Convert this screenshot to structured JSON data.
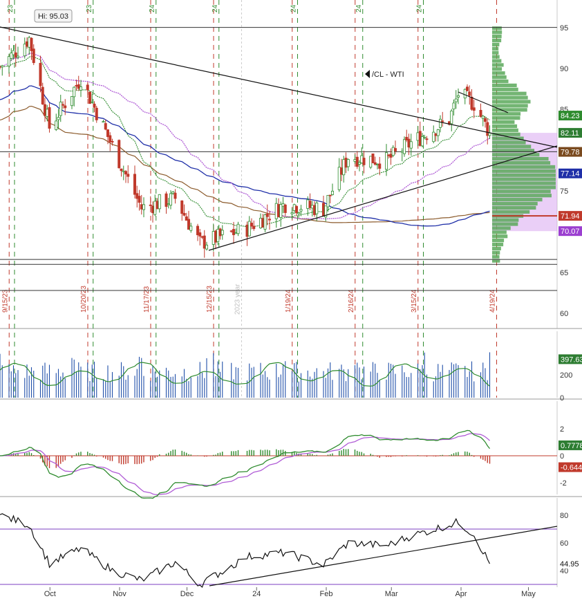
{
  "symbol_label": "/CL - WTI",
  "high_callout": "Hi: 95.03",
  "colors": {
    "up": "#2e8b2e",
    "down": "#c0392b",
    "sma_blue": "#1f2fa8",
    "sma_brown": "#8b5a2b",
    "sma_purple": "#b05cd6",
    "ema_green": "#2e8b2e",
    "volume_profile_green": "#5aa85a",
    "value_area_purple": "#d9a8f0",
    "trendline": "#111111",
    "expiry_red": "#c0392b",
    "roll_green": "#2e8b2e"
  },
  "chart_data": [
    {
      "panel": "price",
      "type": "candlestick",
      "x_axis_months": [
        "Oct",
        "Nov",
        "Dec",
        "24",
        "Feb",
        "Mar",
        "Apr",
        "May"
      ],
      "y_ticks": [
        60,
        65,
        70,
        75,
        80,
        85,
        90,
        95
      ],
      "ylim": [
        58,
        97
      ],
      "close_approx": [
        {
          "date": "2023-09-14",
          "close": 90.2
        },
        {
          "date": "2023-09-27",
          "close": 93.7
        },
        {
          "date": "2023-10-06",
          "close": 82.8
        },
        {
          "date": "2023-10-20",
          "close": 88.8
        },
        {
          "date": "2023-11-03",
          "close": 80.5
        },
        {
          "date": "2023-11-16",
          "close": 72.9
        },
        {
          "date": "2023-12-01",
          "close": 74.1
        },
        {
          "date": "2023-12-12",
          "close": 68.6
        },
        {
          "date": "2024-01-02",
          "close": 70.4
        },
        {
          "date": "2024-01-19",
          "close": 73.4
        },
        {
          "date": "2024-02-05",
          "close": 72.8
        },
        {
          "date": "2024-02-16",
          "close": 79.2
        },
        {
          "date": "2024-03-04",
          "close": 78.7
        },
        {
          "date": "2024-03-15",
          "close": 80.9
        },
        {
          "date": "2024-04-01",
          "close": 83.7
        },
        {
          "date": "2024-04-05",
          "close": 86.9
        },
        {
          "date": "2024-04-12",
          "close": 85.7
        },
        {
          "date": "2024-04-19",
          "close": 82.1
        }
      ],
      "moving_averages": [
        {
          "color_key": "ema_green",
          "last": 84.23
        },
        {
          "color_key": "sma_brown",
          "last": 79.78
        },
        {
          "color_key": "sma_blue",
          "last": 77.14
        }
      ],
      "price_labels": [
        {
          "value": "84.23",
          "bg": "#2e8b2e"
        },
        {
          "value": "82.11",
          "bg": "#2e7d32"
        },
        {
          "value": "79.78",
          "bg": "#7a4a1e"
        },
        {
          "value": "77.14",
          "bg": "#1f2fa8"
        },
        {
          "value": "71.94",
          "bg": "#c0392b"
        },
        {
          "value": "70.07",
          "bg": "#9b3fd0"
        }
      ],
      "horizontal_levels": [
        95.03,
        66.6,
        66.0,
        79.8,
        62.8
      ],
      "value_area": [
        70.07,
        82.11
      ],
      "expiry_labels": [
        "9/15/23",
        "10/20/23",
        "11/17/23",
        "12/15/23",
        "1/19/24",
        "2/16/24",
        "3/15/24",
        "4/19/24"
      ],
      "roll_labels": [
        "23",
        "23",
        "24",
        "24",
        "24",
        "24",
        "24"
      ],
      "year_marker": "2023 year"
    },
    {
      "panel": "volume",
      "type": "bar",
      "y_ticks": [
        0,
        200
      ],
      "last_value": "397.63"
    },
    {
      "panel": "macd",
      "type": "line",
      "y_ticks": [
        -2,
        0,
        2
      ],
      "macd_last": "0.7778",
      "histogram_last": "-0.644"
    },
    {
      "panel": "rsi",
      "type": "line",
      "y_ticks": [
        40,
        60,
        80
      ],
      "levels": [
        70,
        30
      ],
      "last_value": "44.95",
      "approx": [
        {
          "date": "2023-09-14",
          "rsi": 80
        },
        {
          "date": "2023-09-27",
          "rsi": 73
        },
        {
          "date": "2023-10-06",
          "rsi": 45
        },
        {
          "date": "2023-10-20",
          "rsi": 56
        },
        {
          "date": "2023-11-03",
          "rsi": 40
        },
        {
          "date": "2023-11-16",
          "rsi": 33
        },
        {
          "date": "2023-12-01",
          "rsi": 46
        },
        {
          "date": "2023-12-12",
          "rsi": 30
        },
        {
          "date": "2024-01-02",
          "rsi": 50
        },
        {
          "date": "2024-01-19",
          "rsi": 53
        },
        {
          "date": "2024-02-05",
          "rsi": 44
        },
        {
          "date": "2024-02-16",
          "rsi": 60
        },
        {
          "date": "2024-03-04",
          "rsi": 58
        },
        {
          "date": "2024-03-15",
          "rsi": 65
        },
        {
          "date": "2024-04-05",
          "rsi": 75
        },
        {
          "date": "2024-04-12",
          "rsi": 66
        },
        {
          "date": "2024-04-19",
          "rsi": 44.95
        }
      ]
    }
  ]
}
